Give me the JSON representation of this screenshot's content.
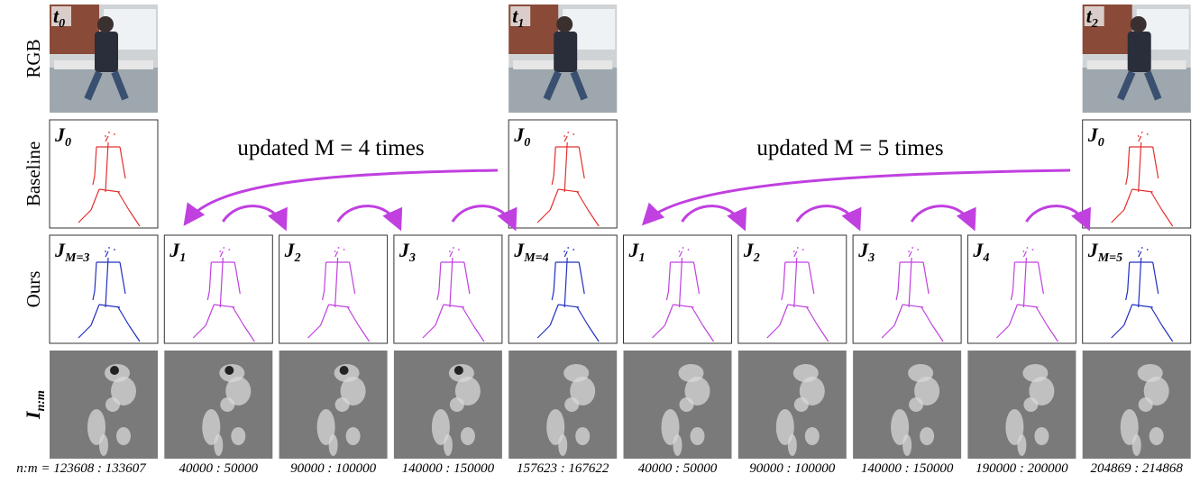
{
  "row_labels": [
    "RGB",
    "Baseline",
    "Ours"
  ],
  "intensity_label": {
    "main": "I",
    "sub": "n:m"
  },
  "time_labels": [
    {
      "main": "t",
      "sub": "0"
    },
    {
      "main": "t",
      "sub": "1"
    },
    {
      "main": "t",
      "sub": "2"
    }
  ],
  "baseline_labels": [
    {
      "main": "J",
      "sub": "0"
    },
    {
      "main": "J",
      "sub": "0"
    },
    {
      "main": "J",
      "sub": "0"
    }
  ],
  "ours_labels": [
    {
      "main": "J",
      "sub": "M=3"
    },
    {
      "main": "J",
      "sub": "1"
    },
    {
      "main": "J",
      "sub": "2"
    },
    {
      "main": "J",
      "sub": "3"
    },
    {
      "main": "J",
      "sub": "M=4"
    },
    {
      "main": "J",
      "sub": "1"
    },
    {
      "main": "J",
      "sub": "2"
    },
    {
      "main": "J",
      "sub": "3"
    },
    {
      "main": "J",
      "sub": "4"
    },
    {
      "main": "J",
      "sub": "M=5"
    }
  ],
  "annotations": [
    "updated M = 4 times",
    "updated M = 5 times"
  ],
  "ratio_prefix": "n:m =",
  "ratios": [
    "123608 : 133607",
    "40000 : 50000",
    "90000 : 100000",
    "140000 : 150000",
    "157623 : 167622",
    "40000 : 50000",
    "90000 : 100000",
    "140000 : 150000",
    "190000 : 200000",
    "204869 : 214868"
  ]
}
